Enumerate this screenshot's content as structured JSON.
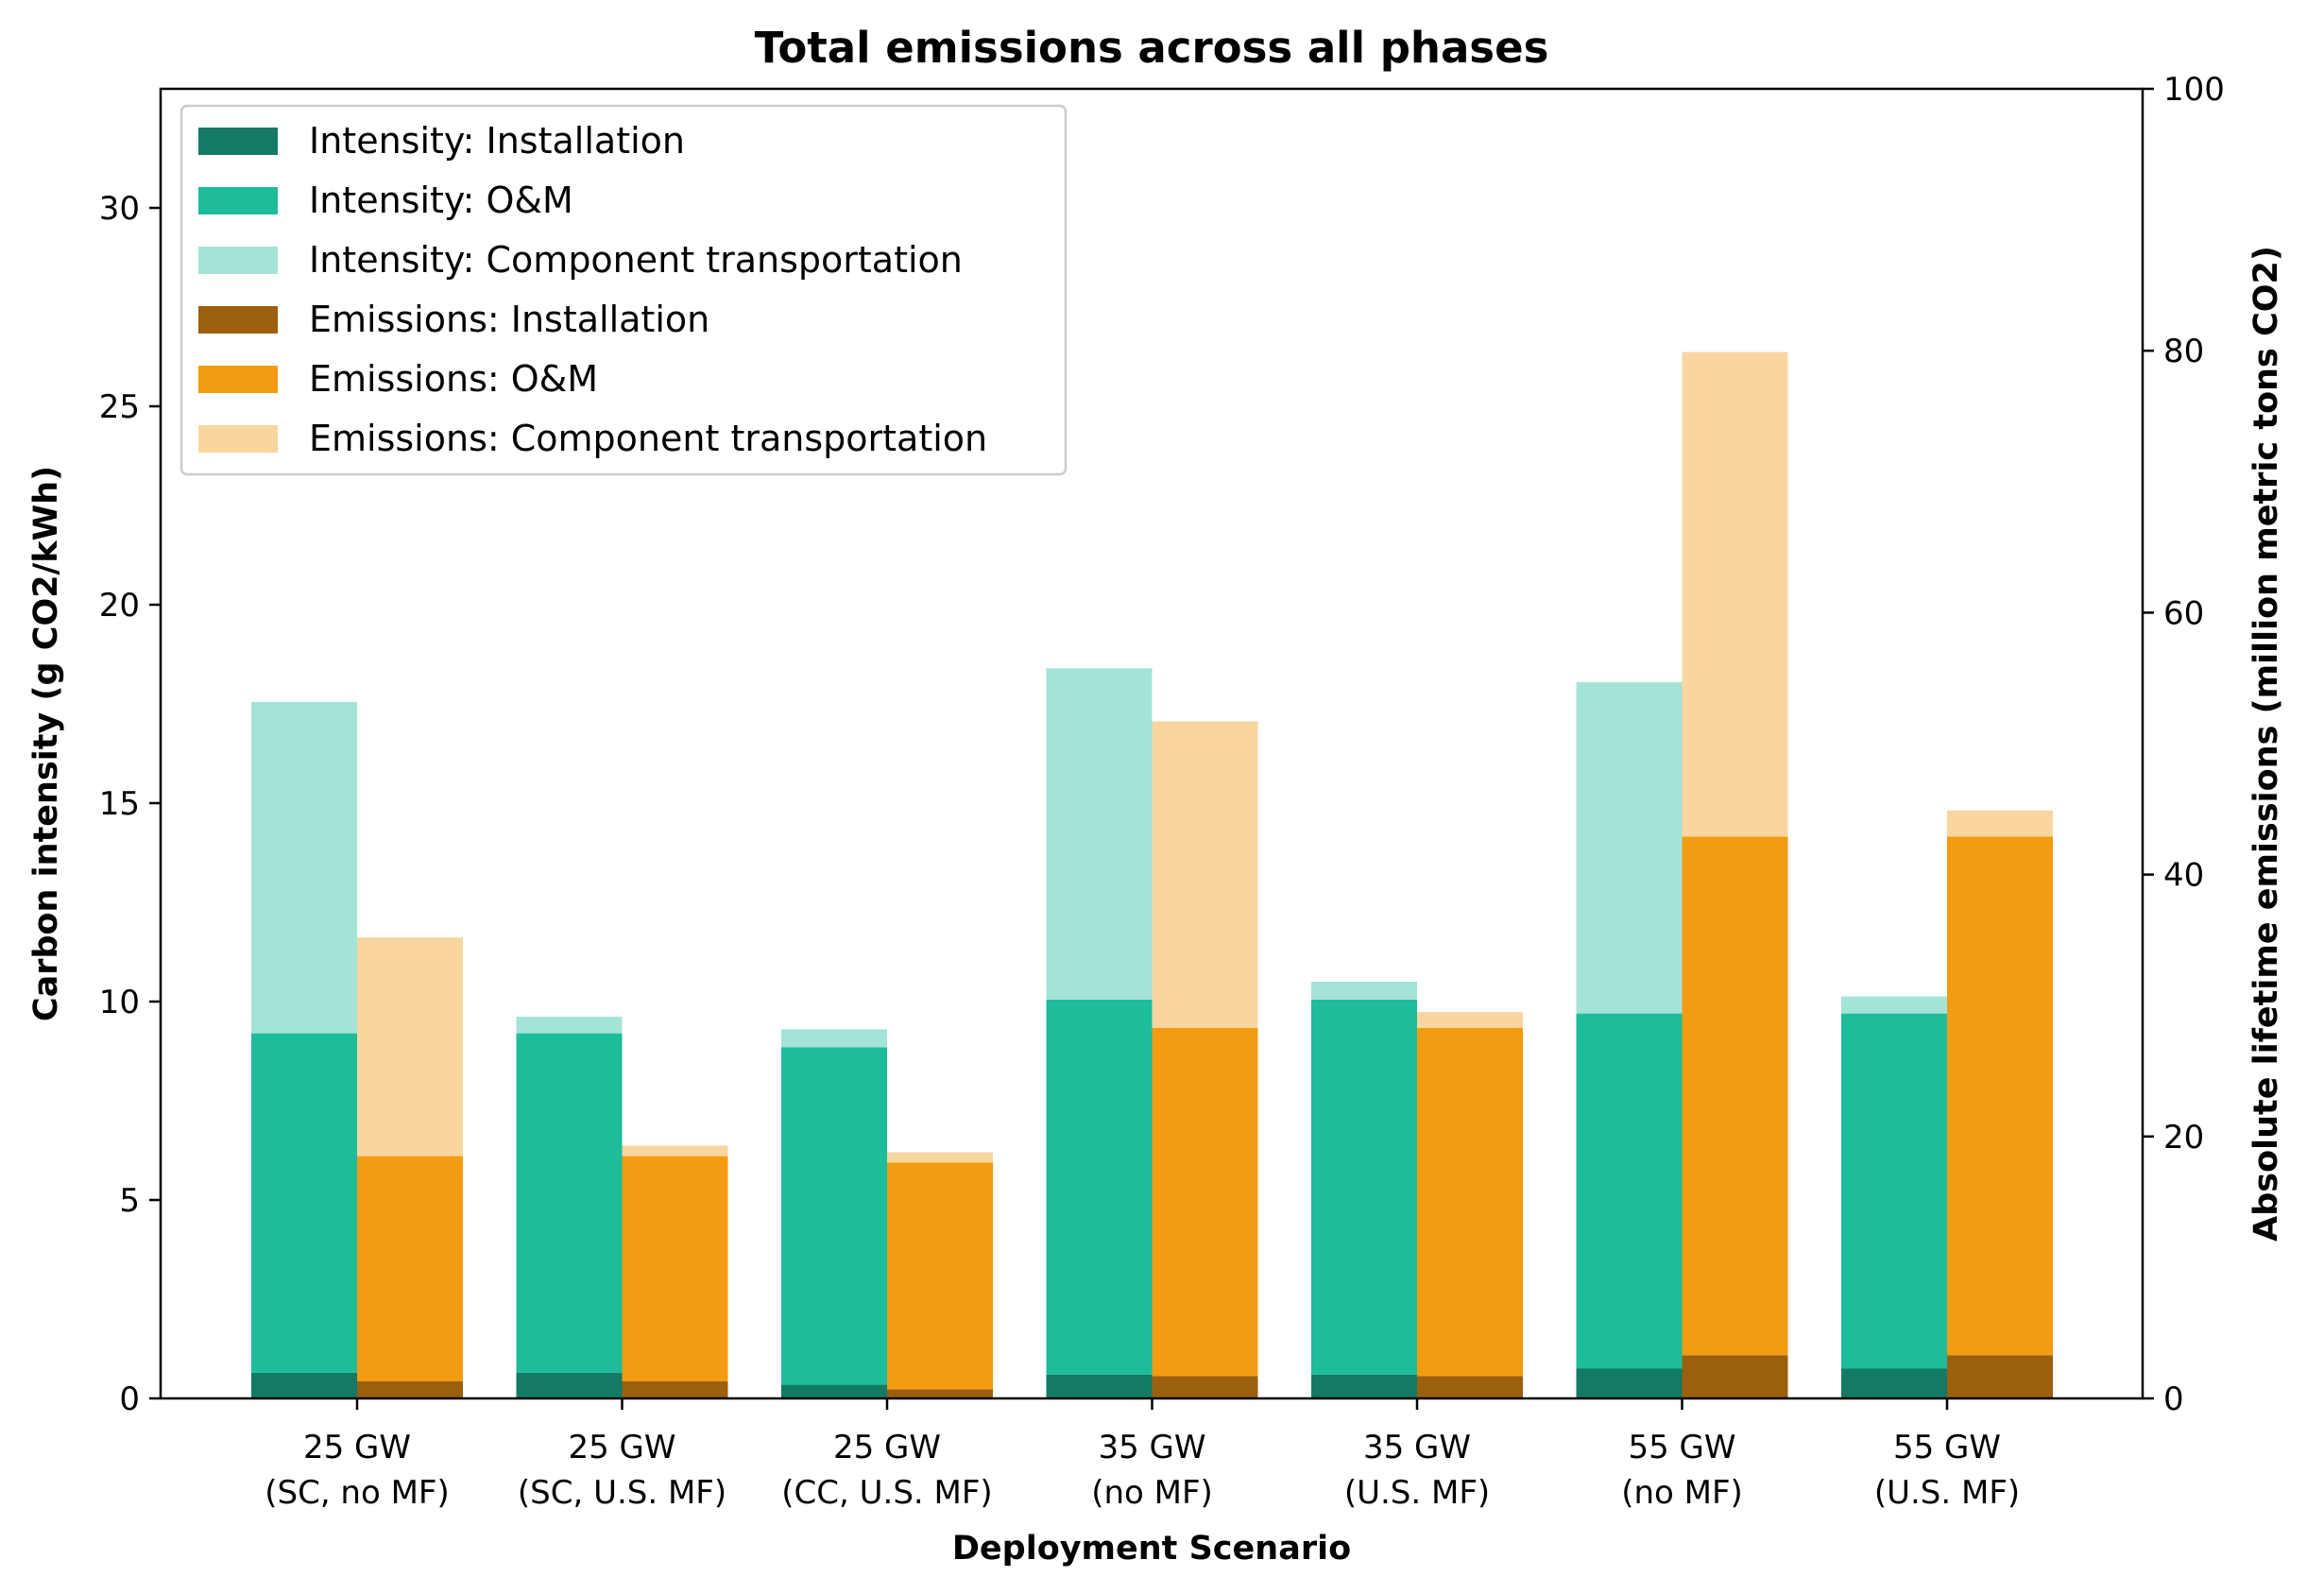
{
  "chart_data": {
    "type": "bar",
    "title": "Total emissions across all phases",
    "xlabel": "Deployment Scenario",
    "ylabel_left": "Carbon intensity (g CO2/kWh)",
    "ylabel_right": "Absolute lifetime emissions (million metric tons CO2)",
    "ylim_left": [
      0,
      33
    ],
    "ylim_right": [
      0,
      100
    ],
    "yticks_left": [
      0,
      5,
      10,
      15,
      20,
      25,
      30
    ],
    "yticks_right": [
      0,
      20,
      40,
      60,
      80,
      100
    ],
    "categories": [
      [
        "25 GW",
        "(SC, no MF)"
      ],
      [
        "25 GW",
        "(SC, U.S. MF)"
      ],
      [
        "25 GW",
        "(CC, U.S. MF)"
      ],
      [
        "35 GW",
        "(no MF)"
      ],
      [
        "35 GW",
        "(U.S. MF)"
      ],
      [
        "55 GW",
        "(no MF)"
      ],
      [
        "55 GW",
        "(U.S. MF)"
      ]
    ],
    "stack_groups": [
      {
        "name": "Intensity",
        "axis": "left",
        "series": [
          {
            "name": "Intensity: Installation",
            "color": "#137a63",
            "values": [
              0.65,
              0.65,
              0.35,
              0.6,
              0.6,
              0.75,
              0.75
            ]
          },
          {
            "name": "Intensity: O&M",
            "color": "#1dbc9b",
            "values": [
              8.55,
              8.55,
              8.5,
              9.45,
              9.45,
              8.95,
              8.95
            ]
          },
          {
            "name": "Intensity: Component transportation",
            "color": "#a4e4d7",
            "values": [
              8.35,
              0.42,
              0.45,
              8.35,
              0.45,
              8.35,
              0.43
            ]
          }
        ]
      },
      {
        "name": "Emissions",
        "axis": "right",
        "series": [
          {
            "name": "Emissions: Installation",
            "color": "#9c5f0e",
            "values": [
              1.3,
              1.3,
              0.7,
              1.7,
              1.7,
              3.3,
              3.3
            ]
          },
          {
            "name": "Emissions: O&M",
            "color": "#f39c12",
            "values": [
              17.2,
              17.2,
              17.3,
              26.6,
              26.6,
              39.6,
              39.6
            ]
          },
          {
            "name": "Emissions: Component transportation",
            "color": "#f9d6a0",
            "values": [
              16.7,
              0.8,
              0.8,
              23.4,
              1.2,
              37.0,
              2.0
            ]
          }
        ]
      }
    ],
    "legend_position": "upper-left"
  }
}
